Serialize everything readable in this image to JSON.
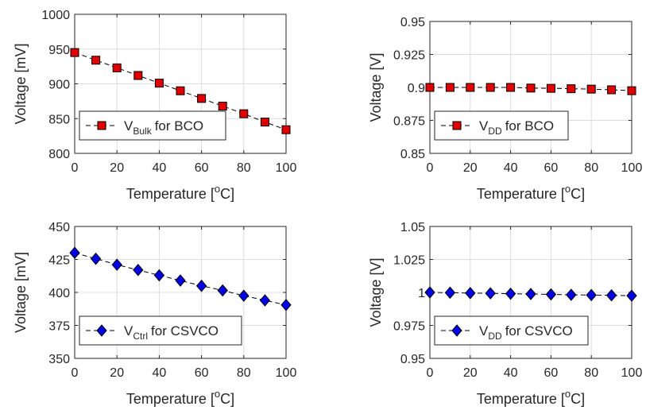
{
  "chart_data": [
    {
      "type": "line",
      "xlabel": "Temperature [°C]",
      "ylabel": "Voltage [mV]",
      "xlim": [
        0,
        100
      ],
      "ylim": [
        800,
        1000
      ],
      "xticks": [
        "0",
        "20",
        "40",
        "60",
        "80",
        "100"
      ],
      "yticks": [
        "800",
        "850",
        "900",
        "950",
        "1000"
      ],
      "grid": true,
      "legend_position": "bottom-left",
      "marker": "square",
      "marker_color": "#e00000",
      "series": [
        {
          "name": "V_Bulk for BCO",
          "legend_main": "V",
          "legend_sub": "Bulk",
          "legend_rest": " for BCO",
          "x": [
            0,
            10,
            20,
            30,
            40,
            50,
            60,
            70,
            80,
            90,
            100
          ],
          "y": [
            945,
            934,
            923,
            912,
            901,
            890,
            879,
            868,
            857,
            845,
            834
          ]
        }
      ]
    },
    {
      "type": "line",
      "xlabel": "Temperature [°C]",
      "ylabel": "Voltage [V]",
      "xlim": [
        0,
        100
      ],
      "ylim": [
        0.85,
        0.95
      ],
      "xticks": [
        "0",
        "20",
        "40",
        "60",
        "80",
        "100"
      ],
      "yticks": [
        "0.85",
        "0.875",
        "0.9",
        "0.925",
        "0.95"
      ],
      "grid": true,
      "legend_position": "bottom-left",
      "marker": "square",
      "marker_color": "#e00000",
      "series": [
        {
          "name": "V_DD for BCO",
          "legend_main": "V",
          "legend_sub": "DD",
          "legend_rest": " for BCO",
          "x": [
            0,
            10,
            20,
            30,
            40,
            50,
            60,
            70,
            80,
            90,
            100
          ],
          "y": [
            0.9,
            0.9,
            0.9,
            0.9,
            0.9,
            0.8995,
            0.8993,
            0.899,
            0.8987,
            0.8982,
            0.8975
          ]
        }
      ]
    },
    {
      "type": "line",
      "xlabel": "Temperature [°C]",
      "ylabel": "Voltage [mV]",
      "xlim": [
        0,
        100
      ],
      "ylim": [
        350,
        450
      ],
      "xticks": [
        "0",
        "20",
        "40",
        "60",
        "80",
        "100"
      ],
      "yticks": [
        "350",
        "375",
        "400",
        "425",
        "450"
      ],
      "grid": true,
      "legend_position": "bottom-left",
      "marker": "diamond",
      "marker_color": "#0000e6",
      "series": [
        {
          "name": "V_Ctrl for CSVCO",
          "legend_main": "V",
          "legend_sub": "Ctrl",
          "legend_rest": " for CSVCO",
          "x": [
            0,
            10,
            20,
            30,
            40,
            50,
            60,
            70,
            80,
            90,
            100
          ],
          "y": [
            430,
            425.5,
            421,
            417,
            413,
            409,
            405,
            401.5,
            397.5,
            394,
            390.5
          ]
        }
      ]
    },
    {
      "type": "line",
      "xlabel": "Temperature [°C]",
      "ylabel": "Voltage [V]",
      "xlim": [
        0,
        100
      ],
      "ylim": [
        0.95,
        1.05
      ],
      "xticks": [
        "0",
        "20",
        "40",
        "60",
        "80",
        "100"
      ],
      "yticks": [
        "0.95",
        "0.975",
        "1",
        "1.025",
        "1.05"
      ],
      "grid": true,
      "legend_position": "bottom-left",
      "marker": "diamond",
      "marker_color": "#0000e6",
      "series": [
        {
          "name": "V_DD for CSVCO",
          "legend_main": "V",
          "legend_sub": "DD",
          "legend_rest": " for CSVCO",
          "x": [
            0,
            10,
            20,
            30,
            40,
            50,
            60,
            70,
            80,
            90,
            100
          ],
          "y": [
            1.0,
            0.9998,
            0.9995,
            0.9993,
            0.999,
            0.9988,
            0.9985,
            0.9982,
            0.998,
            0.9978,
            0.9975
          ]
        }
      ]
    }
  ]
}
